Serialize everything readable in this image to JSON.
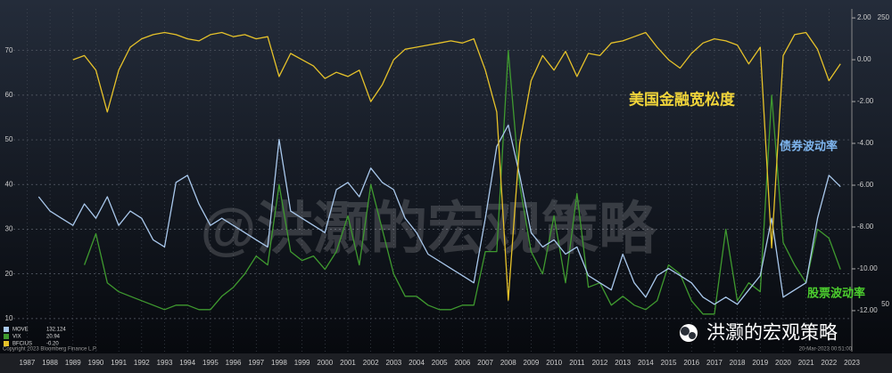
{
  "chart_data": {
    "type": "line",
    "x": [
      1988.0,
      1988.5,
      1989.0,
      1989.5,
      1990.0,
      1990.5,
      1991.0,
      1991.5,
      1992.0,
      1992.5,
      1993.0,
      1993.5,
      1994.0,
      1994.5,
      1995.0,
      1995.5,
      1996.0,
      1996.5,
      1997.0,
      1997.5,
      1998.0,
      1998.5,
      1999.0,
      1999.5,
      2000.0,
      2000.5,
      2001.0,
      2001.5,
      2002.0,
      2002.5,
      2003.0,
      2003.5,
      2004.0,
      2004.5,
      2005.0,
      2005.5,
      2006.0,
      2006.5,
      2007.0,
      2007.5,
      2008.0,
      2008.5,
      2009.0,
      2009.5,
      2010.0,
      2010.5,
      2011.0,
      2011.5,
      2012.0,
      2012.5,
      2013.0,
      2013.5,
      2014.0,
      2014.5,
      2015.0,
      2015.5,
      2016.0,
      2016.5,
      2017.0,
      2017.5,
      2018.0,
      2018.5,
      2019.0,
      2019.5,
      2020.0,
      2020.5,
      2021.0,
      2021.5,
      2022.0,
      2022.5,
      2023.0
    ],
    "series": [
      {
        "name": "MOVE",
        "color": "#a9c8ec",
        "axis": "y3",
        "legend_value": "132.124",
        "values": [
          125,
          115,
          110,
          105,
          120,
          110,
          125,
          105,
          115,
          110,
          95,
          90,
          135,
          140,
          120,
          105,
          110,
          105,
          100,
          95,
          90,
          165,
          115,
          110,
          105,
          100,
          130,
          135,
          125,
          145,
          135,
          130,
          110,
          100,
          85,
          80,
          75,
          70,
          65,
          110,
          160,
          175,
          140,
          100,
          90,
          95,
          85,
          90,
          70,
          65,
          60,
          85,
          65,
          55,
          70,
          75,
          70,
          65,
          55,
          50,
          55,
          50,
          60,
          70,
          110,
          55,
          60,
          65,
          110,
          140,
          132
        ]
      },
      {
        "name": "VIX",
        "color": "#3f9a2f",
        "legend_value": "20.94",
        "values": [
          null,
          null,
          null,
          null,
          22,
          29,
          18,
          16,
          15,
          14,
          13,
          12,
          13,
          13,
          12,
          12,
          15,
          17,
          20,
          24,
          22,
          40,
          25,
          23,
          24,
          21,
          25,
          33,
          22,
          40,
          30,
          20,
          15,
          15,
          13,
          12,
          12,
          13,
          13,
          25,
          25,
          70,
          40,
          25,
          20,
          33,
          18,
          38,
          17,
          18,
          13,
          15,
          13,
          12,
          14,
          22,
          20,
          14,
          11,
          11,
          30,
          14,
          18,
          16,
          60,
          27,
          22,
          18,
          30,
          28,
          21
        ]
      },
      {
        "name": "BFCIUS",
        "color": "#e6c22a",
        "axis": "y2",
        "legend_value": "-0.20",
        "values": [
          null,
          null,
          null,
          0.0,
          0.2,
          -0.5,
          -2.5,
          -0.5,
          0.6,
          1.0,
          1.2,
          1.3,
          1.2,
          1.0,
          0.9,
          1.2,
          1.3,
          1.1,
          1.2,
          1.0,
          1.1,
          -0.8,
          0.3,
          0.0,
          -0.3,
          -0.9,
          -0.6,
          -0.8,
          -0.5,
          -2.0,
          -1.2,
          0.0,
          0.5,
          0.6,
          0.7,
          0.8,
          0.9,
          0.8,
          1.0,
          -0.5,
          -2.5,
          -11.5,
          -4.0,
          -1.0,
          0.2,
          -0.5,
          0.4,
          -0.8,
          0.3,
          0.2,
          0.8,
          0.9,
          1.1,
          1.3,
          0.6,
          0.0,
          -0.4,
          0.3,
          0.8,
          1.0,
          0.9,
          0.7,
          -0.2,
          0.6,
          -9.0,
          0.2,
          1.2,
          1.3,
          0.5,
          -1.0,
          -0.2
        ]
      }
    ],
    "xlim": [
      1986.9,
      2023.5
    ],
    "xticks": [
      {
        "value": 1987.5,
        "label": "1987"
      },
      {
        "value": 1988.5,
        "label": "1988"
      },
      {
        "value": 1989.5,
        "label": "1989"
      },
      {
        "value": 1990.5,
        "label": "1990"
      },
      {
        "value": 1991.5,
        "label": "1991"
      },
      {
        "value": 1992.5,
        "label": "1992"
      },
      {
        "value": 1993.5,
        "label": "1993"
      },
      {
        "value": 1994.5,
        "label": "1994"
      },
      {
        "value": 1995.5,
        "label": "1995"
      },
      {
        "value": 1996.5,
        "label": "1996"
      },
      {
        "value": 1997.5,
        "label": "1997"
      },
      {
        "value": 1998.5,
        "label": "1998"
      },
      {
        "value": 1999.5,
        "label": "1999"
      },
      {
        "value": 2000.5,
        "label": "2000"
      },
      {
        "value": 2001.5,
        "label": "2001"
      },
      {
        "value": 2002.5,
        "label": "2002"
      },
      {
        "value": 2003.5,
        "label": "2003"
      },
      {
        "value": 2004.5,
        "label": "2004"
      },
      {
        "value": 2005.5,
        "label": "2005"
      },
      {
        "value": 2006.5,
        "label": "2006"
      },
      {
        "value": 2007.5,
        "label": "2007"
      },
      {
        "value": 2008.5,
        "label": "2008"
      },
      {
        "value": 2009.5,
        "label": "2009"
      },
      {
        "value": 2010.5,
        "label": "2010"
      },
      {
        "value": 2011.5,
        "label": "2011"
      },
      {
        "value": 2012.5,
        "label": "2012"
      },
      {
        "value": 2013.5,
        "label": "2013"
      },
      {
        "value": 2014.5,
        "label": "2014"
      },
      {
        "value": 2015.5,
        "label": "2015"
      },
      {
        "value": 2016.5,
        "label": "2016"
      },
      {
        "value": 2017.5,
        "label": "2017"
      },
      {
        "value": 2018.5,
        "label": "2018"
      },
      {
        "value": 2019.5,
        "label": "2019"
      },
      {
        "value": 2020.5,
        "label": "2020"
      },
      {
        "value": 2021.5,
        "label": "2021"
      },
      {
        "value": 2022.5,
        "label": "2022"
      },
      {
        "value": 2023.5,
        "label": "2023"
      }
    ],
    "ylim": [
      2.6,
      79.3
    ],
    "yticks": [
      10,
      20,
      30,
      40,
      50,
      60,
      70
    ],
    "y2lim": [
      -13.96,
      2.43
    ],
    "y2ticks": [
      {
        "value": 2,
        "label": "2.00"
      },
      {
        "value": 0,
        "label": "0.00"
      },
      {
        "value": -2,
        "label": "-2.00"
      },
      {
        "value": -4,
        "label": "-4.00"
      },
      {
        "value": -6,
        "label": "-6.00"
      },
      {
        "value": -8,
        "label": "-8.00"
      },
      {
        "value": -10,
        "label": "-10.00"
      },
      {
        "value": -12,
        "label": "-12.00"
      }
    ],
    "y3lim": [
      17,
      256
    ],
    "y3ticks": [
      50,
      250
    ],
    "grid": true,
    "annotations": [
      {
        "text": "美国金融宽松度",
        "color": "#f0d43a"
      },
      {
        "text": "债券波动率",
        "color": "#7fb6ef"
      },
      {
        "text": "股票波动率",
        "color": "#4ccf2e"
      }
    ],
    "watermark": "@洪灏的宏观策略",
    "logo_text": "洪灏的宏观策略",
    "source": "Copyright 2023 Bloomberg Finance L.P.",
    "date": "20-Mar-2023 00:51:00"
  }
}
